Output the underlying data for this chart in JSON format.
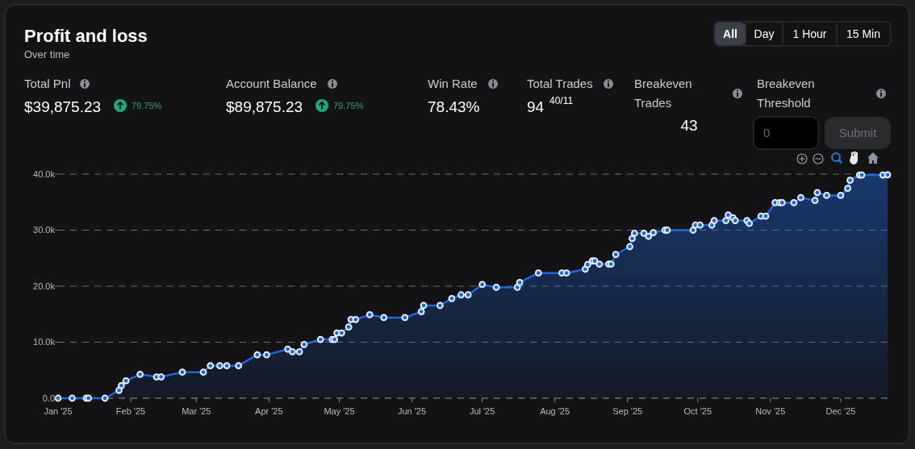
{
  "chart_data": {
    "type": "area",
    "title": "Profit and loss",
    "subtitle": "Over time",
    "annotations": [
      "Total Pnl",
      "$39,875.23",
      "79.75%",
      "Account Balance",
      "$89,875.23",
      "79.75%",
      "Win Rate",
      "78.43%",
      "Total Trades",
      "94",
      "40/11",
      "Breakeven Trades",
      "43",
      "Breakeven Threshold",
      "0",
      "Submit",
      "All",
      "Day",
      "1 Hour",
      "15 Min"
    ],
    "xlim": [
      "2025-01-01",
      "2025-12-21"
    ],
    "xticks": [
      {
        "value": "2025-01-01",
        "label": "Jan '25"
      },
      {
        "value": "2025-02-01",
        "label": "Feb '25"
      },
      {
        "value": "2025-03-01",
        "label": "Mar '25"
      },
      {
        "value": "2025-04-01",
        "label": "Apr '25"
      },
      {
        "value": "2025-05-01",
        "label": "May '25"
      },
      {
        "value": "2025-06-01",
        "label": "Jun '25"
      },
      {
        "value": "2025-07-01",
        "label": "Jul '25"
      },
      {
        "value": "2025-08-01",
        "label": "Aug '25"
      },
      {
        "value": "2025-09-01",
        "label": "Sep '25"
      },
      {
        "value": "2025-10-01",
        "label": "Oct '25"
      },
      {
        "value": "2025-11-01",
        "label": "Nov '25"
      },
      {
        "value": "2025-12-01",
        "label": "Dec '25"
      }
    ],
    "ylim": [
      0,
      40000
    ],
    "yticks": [
      {
        "value": 0,
        "label": "0.0"
      },
      {
        "value": 10000,
        "label": "10.0k"
      },
      {
        "value": 20000,
        "label": "20.0k"
      },
      {
        "value": 30000,
        "label": "30.0k"
      },
      {
        "value": 40000,
        "label": "40.0k"
      }
    ],
    "grid": "y",
    "marker": "circle",
    "line_style": "solid",
    "series": [
      {
        "color": "#1e66dc",
        "x": [
          "2025-01-01",
          "2025-01-07",
          "2025-01-13",
          "2025-01-14",
          "2025-01-21",
          "2025-01-27",
          "2025-01-28",
          "2025-01-30",
          "2025-02-05",
          "2025-02-12",
          "2025-02-14",
          "2025-02-23",
          "2025-03-04",
          "2025-03-07",
          "2025-03-11",
          "2025-03-14",
          "2025-03-19",
          "2025-03-27",
          "2025-03-31",
          "2025-04-09",
          "2025-04-11",
          "2025-04-14",
          "2025-04-16",
          "2025-04-23",
          "2025-04-28",
          "2025-04-29",
          "2025-04-30",
          "2025-05-02",
          "2025-05-05",
          "2025-05-06",
          "2025-05-08",
          "2025-05-14",
          "2025-05-20",
          "2025-05-29",
          "2025-06-05",
          "2025-06-06",
          "2025-06-13",
          "2025-06-18",
          "2025-06-22",
          "2025-06-25",
          "2025-07-01",
          "2025-07-07",
          "2025-07-16",
          "2025-07-17",
          "2025-07-25",
          "2025-08-04",
          "2025-08-06",
          "2025-08-14",
          "2025-08-15",
          "2025-08-17",
          "2025-08-18",
          "2025-08-20",
          "2025-08-24",
          "2025-08-25",
          "2025-08-27",
          "2025-09-02",
          "2025-09-03",
          "2025-09-04",
          "2025-09-08",
          "2025-09-10",
          "2025-09-12",
          "2025-09-17",
          "2025-09-18",
          "2025-09-29",
          "2025-09-30",
          "2025-10-02",
          "2025-10-07",
          "2025-10-08",
          "2025-10-13",
          "2025-10-14",
          "2025-10-16",
          "2025-10-17",
          "2025-10-22",
          "2025-10-23",
          "2025-10-28",
          "2025-10-30",
          "2025-11-03",
          "2025-11-05",
          "2025-11-06",
          "2025-11-11",
          "2025-11-14",
          "2025-11-20",
          "2025-11-21",
          "2025-11-25",
          "2025-12-01",
          "2025-12-04",
          "2025-12-05",
          "2025-12-09",
          "2025-12-10",
          "2025-12-19",
          "2025-12-21"
        ],
        "values": [
          0,
          0,
          0,
          0,
          0,
          1400,
          2250,
          3100,
          4250,
          3800,
          3800,
          4650,
          4650,
          5800,
          5800,
          5800,
          5800,
          7750,
          7750,
          8750,
          8300,
          8300,
          9600,
          10500,
          10500,
          10500,
          11650,
          11650,
          12700,
          14050,
          14050,
          14900,
          14400,
          14400,
          15450,
          16550,
          16550,
          17800,
          18450,
          18450,
          20300,
          19800,
          19800,
          20650,
          22350,
          22350,
          22350,
          23050,
          23850,
          24500,
          24500,
          23950,
          23950,
          23950,
          25650,
          27050,
          28500,
          29450,
          29450,
          28900,
          29550,
          30000,
          30000,
          30000,
          30900,
          30900,
          30900,
          31700,
          31700,
          32700,
          32200,
          31700,
          31700,
          31200,
          32500,
          32500,
          34900,
          34900,
          34900,
          34900,
          35800,
          35300,
          36700,
          36200,
          36200,
          37450,
          38900,
          39850,
          39850,
          39850,
          39875.23
        ]
      }
    ]
  }
}
